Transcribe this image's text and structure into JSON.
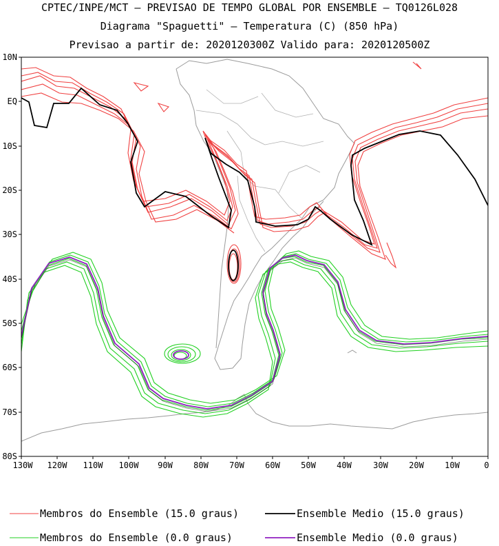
{
  "header": {
    "line1": "CPTEC/INPE/MCT — PREVISAO DE TEMPO GLOBAL POR ENSEMBLE — TQ0126L028",
    "line2": "Diagrama \"Spaguetti\" — Temperatura (C) (850 hPa)",
    "line3": "Previsao a partir de: 2020120300Z  Valido para: 2020120500Z"
  },
  "axes": {
    "lat_labels": [
      "10N",
      "EQ",
      "10S",
      "20S",
      "30S",
      "40S",
      "50S",
      "60S",
      "70S",
      "80S"
    ],
    "lon_labels": [
      "130W",
      "120W",
      "110W",
      "100W",
      "90W",
      "80W",
      "70W",
      "60W",
      "50W",
      "40W",
      "30W",
      "20W",
      "10W",
      "0"
    ]
  },
  "legend": {
    "members_15": "Membros do Ensemble (15.0 graus)",
    "mean_15": "Ensemble Medio (15.0 graus)",
    "members_0": "Membros do Ensemble (0.0 graus)",
    "mean_0": "Ensemble Medio (0.0 graus)"
  },
  "colors": {
    "members_15": "#f04040",
    "mean_15": "#000000",
    "members_0": "#20d020",
    "mean_0": "#9020c0",
    "land": "#9a9a9a"
  }
}
